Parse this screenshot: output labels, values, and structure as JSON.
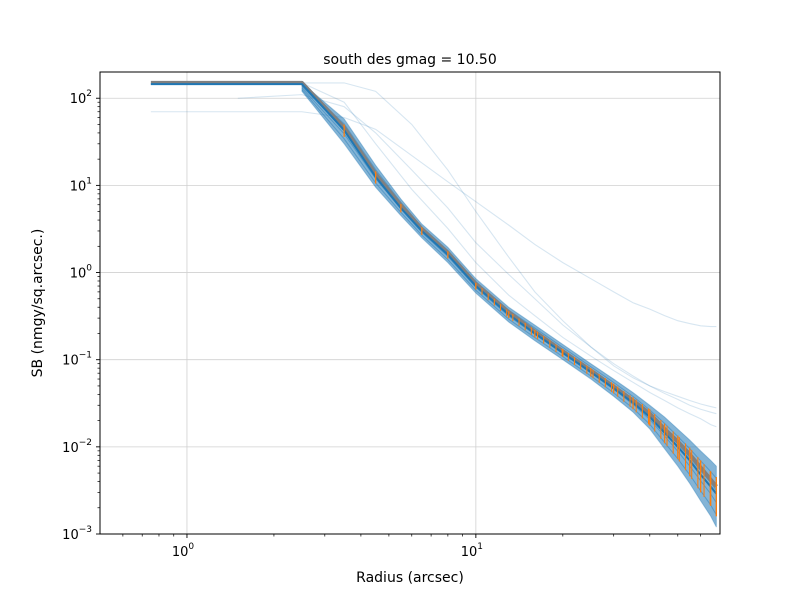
{
  "chart_data": {
    "type": "line",
    "title": "south des gmag = 10.50",
    "xlabel": "Radius (arcsec)",
    "ylabel": "SB (nmgy/sq.arcsec.)",
    "xscale": "log",
    "yscale": "log",
    "xlim": [
      0.5,
      70
    ],
    "ylim": [
      0.001,
      200
    ],
    "grid": true,
    "x_ticks": [
      {
        "value": 1,
        "base": "10",
        "exp": "0"
      },
      {
        "value": 10,
        "base": "10",
        "exp": "1"
      }
    ],
    "y_ticks": [
      {
        "value": 0.001,
        "base": "10",
        "exp": "−3"
      },
      {
        "value": 0.01,
        "base": "10",
        "exp": "−2"
      },
      {
        "value": 0.1,
        "base": "10",
        "exp": "−1"
      },
      {
        "value": 1,
        "base": "10",
        "exp": "0"
      },
      {
        "value": 10,
        "base": "10",
        "exp": "1"
      },
      {
        "value": 100,
        "base": "10",
        "exp": "2"
      }
    ],
    "colors": {
      "individual_profiles": "#1f77b4",
      "median_profile": "#ff7f0e",
      "model_profile": "#808080"
    },
    "series": [
      {
        "role": "model_profile",
        "x": [
          0.75,
          2.5,
          3.5,
          4.5,
          5.5,
          6.5,
          8,
          10,
          13,
          16,
          20,
          25,
          30,
          35,
          40,
          45,
          50,
          55,
          60,
          65,
          68
        ],
        "y": [
          150,
          150,
          46,
          13.5,
          5.9,
          3.15,
          1.68,
          0.74,
          0.35,
          0.21,
          0.125,
          0.075,
          0.049,
          0.034,
          0.024,
          0.016,
          0.0115,
          0.0082,
          0.0058,
          0.0042,
          0.0035
        ]
      },
      {
        "role": "median_profile",
        "x": [
          0.75,
          2.5,
          3.5,
          4.5,
          5.5,
          6.5,
          8,
          10,
          13,
          16,
          20,
          25,
          30,
          35,
          40,
          45,
          50,
          55,
          60,
          65,
          68
        ],
        "y": [
          145,
          145,
          43,
          12.5,
          5.5,
          3.0,
          1.6,
          0.7,
          0.33,
          0.2,
          0.12,
          0.072,
          0.047,
          0.032,
          0.022,
          0.0145,
          0.01,
          0.007,
          0.0048,
          0.0035,
          0.0029
        ],
        "err_low": [
          145,
          145,
          36,
          10.5,
          4.9,
          2.7,
          1.45,
          0.64,
          0.3,
          0.18,
          0.108,
          0.064,
          0.041,
          0.027,
          0.0175,
          0.011,
          0.0072,
          0.0046,
          0.003,
          0.0021,
          0.0016
        ],
        "err_high": [
          145,
          145,
          50,
          14.5,
          6.1,
          3.3,
          1.75,
          0.76,
          0.36,
          0.22,
          0.132,
          0.08,
          0.053,
          0.037,
          0.027,
          0.0185,
          0.0135,
          0.0098,
          0.007,
          0.0052,
          0.0045
        ]
      },
      {
        "role": "individual_profiles_band",
        "x": [
          2.5,
          3.5,
          4.5,
          5.5,
          6.5,
          8,
          10,
          13,
          16,
          20,
          25,
          30,
          35,
          40,
          45,
          50,
          55,
          60,
          65,
          68
        ],
        "y_low": [
          120,
          30,
          9.5,
          4.5,
          2.5,
          1.3,
          0.58,
          0.27,
          0.165,
          0.1,
          0.06,
          0.038,
          0.025,
          0.016,
          0.0095,
          0.006,
          0.0038,
          0.0024,
          0.0016,
          0.0012
        ],
        "y_high": [
          150,
          58,
          17,
          7,
          3.6,
          1.95,
          0.85,
          0.4,
          0.25,
          0.15,
          0.09,
          0.06,
          0.042,
          0.03,
          0.022,
          0.016,
          0.012,
          0.009,
          0.007,
          0.006
        ]
      },
      {
        "role": "individual_profile",
        "x": [
          0.75,
          2.5,
          3.5,
          4.5,
          6,
          8,
          10,
          13,
          16,
          20,
          25,
          30,
          35,
          40,
          45,
          50,
          55,
          60,
          65,
          68
        ],
        "y": [
          70,
          70,
          60,
          44,
          22,
          11,
          6.5,
          3.5,
          2.1,
          1.3,
          0.85,
          0.6,
          0.45,
          0.38,
          0.32,
          0.28,
          0.26,
          0.245,
          0.24,
          0.24
        ]
      },
      {
        "role": "individual_profile",
        "x": [
          0.75,
          2.5,
          3.5,
          4.5,
          6,
          8,
          10,
          13,
          16,
          20,
          25,
          30,
          35,
          40,
          45,
          50,
          55,
          60,
          65,
          68
        ],
        "y": [
          150,
          150,
          150,
          120,
          50,
          15,
          5,
          1.5,
          0.6,
          0.28,
          0.14,
          0.085,
          0.062,
          0.05,
          0.043,
          0.038,
          0.034,
          0.031,
          0.029,
          0.028
        ]
      },
      {
        "role": "individual_profile",
        "x": [
          1.5,
          2.5,
          3.5,
          4.5,
          6,
          8,
          10,
          13,
          16,
          20,
          25,
          30,
          35,
          40,
          45,
          50,
          55,
          60,
          65,
          68
        ],
        "y": [
          100,
          110,
          80,
          40,
          15,
          5.5,
          2.2,
          0.95,
          0.5,
          0.25,
          0.14,
          0.09,
          0.065,
          0.05,
          0.041,
          0.035,
          0.03,
          0.027,
          0.025,
          0.024
        ]
      },
      {
        "role": "individual_profile",
        "x": [
          2.5,
          3.5,
          4.5,
          6,
          8,
          10,
          13,
          16,
          20,
          25,
          30,
          35,
          40,
          45,
          50,
          55,
          60,
          65,
          68
        ],
        "y": [
          150,
          90,
          30,
          9,
          3.2,
          1.3,
          0.55,
          0.32,
          0.18,
          0.11,
          0.075,
          0.055,
          0.042,
          0.034,
          0.028,
          0.024,
          0.021,
          0.018,
          0.017
        ]
      }
    ]
  }
}
